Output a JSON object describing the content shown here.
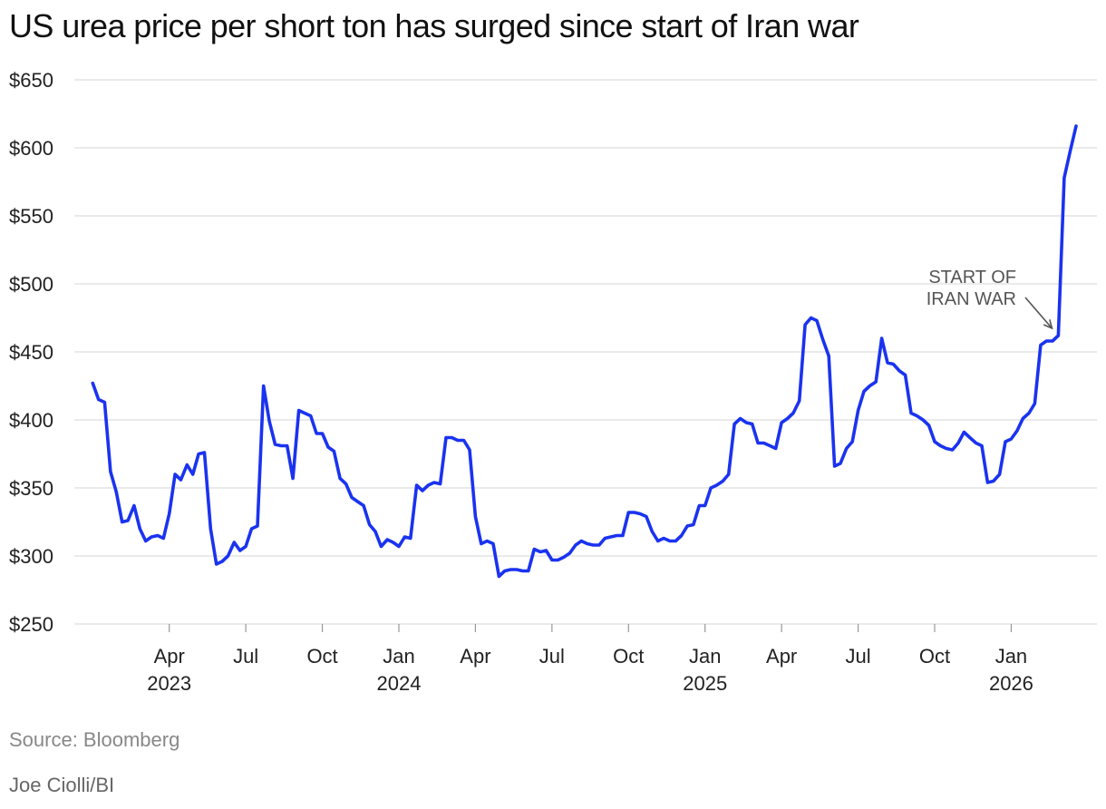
{
  "chart_data": {
    "type": "line",
    "title": "US urea price per short ton has surged since start of Iran war",
    "xlabel": "",
    "ylabel": "",
    "ylim": [
      250,
      650
    ],
    "yticks": [
      250,
      300,
      350,
      400,
      450,
      500,
      550,
      600,
      650
    ],
    "ytick_labels": [
      "$250",
      "$300",
      "$350",
      "$400",
      "$450",
      "$500",
      "$550",
      "$600",
      "$650"
    ],
    "xticks": [
      {
        "date": 2023.25,
        "month": "Apr",
        "year": "2023"
      },
      {
        "date": 2023.5,
        "month": "Jul",
        "year": ""
      },
      {
        "date": 2023.75,
        "month": "Oct",
        "year": ""
      },
      {
        "date": 2024.0,
        "month": "Jan",
        "year": "2024"
      },
      {
        "date": 2024.25,
        "month": "Apr",
        "year": ""
      },
      {
        "date": 2024.5,
        "month": "Jul",
        "year": ""
      },
      {
        "date": 2024.75,
        "month": "Oct",
        "year": ""
      },
      {
        "date": 2025.0,
        "month": "Jan",
        "year": "2025"
      },
      {
        "date": 2025.25,
        "month": "Apr",
        "year": ""
      },
      {
        "date": 2025.5,
        "month": "Jul",
        "year": ""
      },
      {
        "date": 2025.75,
        "month": "Oct",
        "year": ""
      },
      {
        "date": 2026.0,
        "month": "Jan",
        "year": "2026"
      }
    ],
    "xlim": [
      2022.94,
      2026.28
    ],
    "line_color": "#1a33f0",
    "grid_color": "#dddddd",
    "series": [
      {
        "name": "US urea price per short ton",
        "points": [
          [
            2023.0,
            427
          ],
          [
            2023.019,
            415
          ],
          [
            2023.039,
            413
          ],
          [
            2023.058,
            362
          ],
          [
            2023.077,
            347
          ],
          [
            2023.096,
            325
          ],
          [
            2023.115,
            326
          ],
          [
            2023.135,
            337
          ],
          [
            2023.154,
            320
          ],
          [
            2023.173,
            311
          ],
          [
            2023.192,
            314
          ],
          [
            2023.212,
            315
          ],
          [
            2023.231,
            313
          ],
          [
            2023.25,
            331
          ],
          [
            2023.269,
            360
          ],
          [
            2023.288,
            356
          ],
          [
            2023.308,
            367
          ],
          [
            2023.327,
            360
          ],
          [
            2023.346,
            375
          ],
          [
            2023.365,
            376
          ],
          [
            2023.385,
            320
          ],
          [
            2023.404,
            294
          ],
          [
            2023.423,
            296
          ],
          [
            2023.442,
            300
          ],
          [
            2023.462,
            310
          ],
          [
            2023.481,
            304
          ],
          [
            2023.5,
            307
          ],
          [
            2023.519,
            320
          ],
          [
            2023.538,
            322
          ],
          [
            2023.558,
            425
          ],
          [
            2023.577,
            399
          ],
          [
            2023.596,
            382
          ],
          [
            2023.615,
            381
          ],
          [
            2023.635,
            381
          ],
          [
            2023.654,
            357
          ],
          [
            2023.673,
            407
          ],
          [
            2023.692,
            405
          ],
          [
            2023.712,
            403
          ],
          [
            2023.731,
            390
          ],
          [
            2023.75,
            390
          ],
          [
            2023.769,
            380
          ],
          [
            2023.788,
            377
          ],
          [
            2023.808,
            357
          ],
          [
            2023.827,
            353
          ],
          [
            2023.846,
            343
          ],
          [
            2023.865,
            340
          ],
          [
            2023.885,
            337
          ],
          [
            2023.904,
            323
          ],
          [
            2023.923,
            318
          ],
          [
            2023.942,
            307
          ],
          [
            2023.962,
            312
          ],
          [
            2023.981,
            310
          ],
          [
            2024.0,
            307
          ],
          [
            2024.019,
            314
          ],
          [
            2024.038,
            313
          ],
          [
            2024.058,
            352
          ],
          [
            2024.077,
            348
          ],
          [
            2024.096,
            352
          ],
          [
            2024.115,
            354
          ],
          [
            2024.135,
            353
          ],
          [
            2024.154,
            387
          ],
          [
            2024.173,
            387
          ],
          [
            2024.192,
            385
          ],
          [
            2024.212,
            385
          ],
          [
            2024.231,
            378
          ],
          [
            2024.25,
            329
          ],
          [
            2024.269,
            309
          ],
          [
            2024.288,
            311
          ],
          [
            2024.308,
            309
          ],
          [
            2024.327,
            285
          ],
          [
            2024.346,
            289
          ],
          [
            2024.365,
            290
          ],
          [
            2024.385,
            290
          ],
          [
            2024.404,
            289
          ],
          [
            2024.423,
            289
          ],
          [
            2024.442,
            305
          ],
          [
            2024.462,
            303
          ],
          [
            2024.481,
            304
          ],
          [
            2024.5,
            297
          ],
          [
            2024.519,
            297
          ],
          [
            2024.538,
            299
          ],
          [
            2024.558,
            302
          ],
          [
            2024.577,
            308
          ],
          [
            2024.596,
            311
          ],
          [
            2024.615,
            309
          ],
          [
            2024.635,
            308
          ],
          [
            2024.654,
            308
          ],
          [
            2024.673,
            313
          ],
          [
            2024.692,
            314
          ],
          [
            2024.712,
            315
          ],
          [
            2024.731,
            315
          ],
          [
            2024.75,
            332
          ],
          [
            2024.769,
            332
          ],
          [
            2024.788,
            331
          ],
          [
            2024.808,
            329
          ],
          [
            2024.827,
            318
          ],
          [
            2024.846,
            311
          ],
          [
            2024.865,
            313
          ],
          [
            2024.885,
            311
          ],
          [
            2024.904,
            311
          ],
          [
            2024.923,
            315
          ],
          [
            2024.942,
            322
          ],
          [
            2024.962,
            323
          ],
          [
            2024.981,
            337
          ],
          [
            2025.0,
            337
          ],
          [
            2025.019,
            350
          ],
          [
            2025.038,
            352
          ],
          [
            2025.058,
            355
          ],
          [
            2025.077,
            360
          ],
          [
            2025.096,
            397
          ],
          [
            2025.115,
            401
          ],
          [
            2025.135,
            398
          ],
          [
            2025.154,
            397
          ],
          [
            2025.173,
            383
          ],
          [
            2025.192,
            383
          ],
          [
            2025.212,
            381
          ],
          [
            2025.231,
            379
          ],
          [
            2025.25,
            398
          ],
          [
            2025.269,
            401
          ],
          [
            2025.288,
            405
          ],
          [
            2025.308,
            414
          ],
          [
            2025.327,
            470
          ],
          [
            2025.346,
            475
          ],
          [
            2025.365,
            473
          ],
          [
            2025.385,
            459
          ],
          [
            2025.404,
            447
          ],
          [
            2025.423,
            366
          ],
          [
            2025.442,
            368
          ],
          [
            2025.462,
            379
          ],
          [
            2025.481,
            384
          ],
          [
            2025.5,
            407
          ],
          [
            2025.519,
            421
          ],
          [
            2025.538,
            425
          ],
          [
            2025.558,
            428
          ],
          [
            2025.577,
            460
          ],
          [
            2025.596,
            442
          ],
          [
            2025.615,
            441
          ],
          [
            2025.635,
            436
          ],
          [
            2025.654,
            433
          ],
          [
            2025.673,
            405
          ],
          [
            2025.692,
            403
          ],
          [
            2025.712,
            400
          ],
          [
            2025.731,
            396
          ],
          [
            2025.75,
            384
          ],
          [
            2025.769,
            381
          ],
          [
            2025.788,
            379
          ],
          [
            2025.808,
            378
          ],
          [
            2025.827,
            383
          ],
          [
            2025.846,
            391
          ],
          [
            2025.865,
            387
          ],
          [
            2025.885,
            383
          ],
          [
            2025.904,
            381
          ],
          [
            2025.923,
            354
          ],
          [
            2025.942,
            355
          ],
          [
            2025.962,
            360
          ],
          [
            2025.981,
            384
          ],
          [
            2026.0,
            386
          ],
          [
            2026.019,
            392
          ],
          [
            2026.038,
            401
          ],
          [
            2026.058,
            405
          ],
          [
            2026.077,
            412
          ],
          [
            2026.096,
            455
          ],
          [
            2026.115,
            458
          ],
          [
            2026.135,
            458
          ],
          [
            2026.154,
            462
          ],
          [
            2026.173,
            578
          ],
          [
            2026.192,
            597
          ],
          [
            2026.212,
            616
          ]
        ]
      }
    ],
    "annotations": [
      {
        "text_lines": [
          "START OF",
          "IRAN WAR"
        ],
        "target": [
          2026.154,
          462
        ]
      }
    ]
  },
  "footer": {
    "source": "Source: Bloomberg",
    "credit": "Joe Ciolli/BI"
  }
}
